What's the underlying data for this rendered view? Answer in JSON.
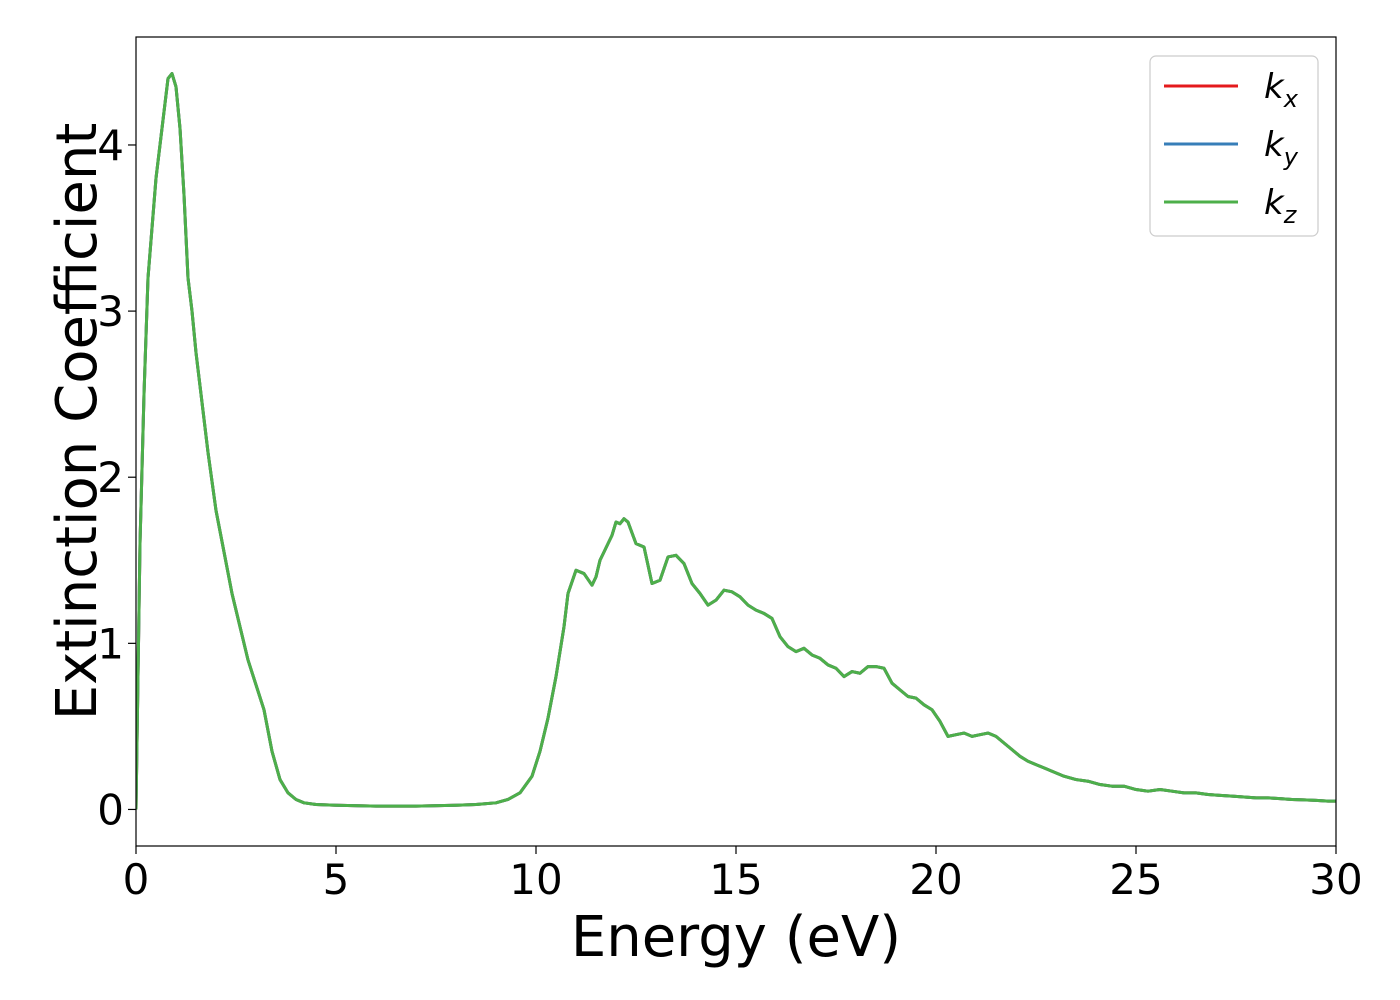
{
  "chart_data": {
    "type": "line",
    "xlabel": "Energy (eV)",
    "ylabel": "Extinction Coefficient",
    "xlim": [
      0,
      30
    ],
    "ylim": [
      -0.22,
      4.65
    ],
    "xticks": [
      0,
      5,
      10,
      15,
      20,
      25,
      30
    ],
    "yticks": [
      0,
      1,
      2,
      3,
      4
    ],
    "grid": false,
    "legend_position": "top-right",
    "series": [
      {
        "name": "k_x",
        "label_base": "k",
        "label_sub": "x",
        "color": "#e41a1c",
        "x": [
          0.0,
          0.1,
          0.2,
          0.3,
          0.4,
          0.5,
          0.6,
          0.7,
          0.8,
          0.9,
          1.0,
          1.1,
          1.2,
          1.25,
          1.3,
          1.4,
          1.5,
          1.6,
          1.8,
          2.0,
          2.2,
          2.4,
          2.6,
          2.8,
          3.0,
          3.2,
          3.4,
          3.6,
          3.8,
          4.0,
          4.2,
          4.5,
          5.0,
          6.0,
          7.0,
          8.0,
          8.5,
          9.0,
          9.3,
          9.6,
          9.9,
          10.1,
          10.3,
          10.5,
          10.7,
          10.8,
          11.0,
          11.2,
          11.4,
          11.5,
          11.6,
          11.7,
          11.8,
          11.9,
          12.0,
          12.1,
          12.2,
          12.3,
          12.5,
          12.7,
          12.9,
          13.1,
          13.3,
          13.5,
          13.7,
          13.9,
          14.1,
          14.3,
          14.5,
          14.7,
          14.9,
          15.1,
          15.3,
          15.5,
          15.7,
          15.9,
          16.1,
          16.3,
          16.5,
          16.7,
          16.9,
          17.1,
          17.3,
          17.5,
          17.7,
          17.9,
          18.1,
          18.3,
          18.5,
          18.7,
          18.9,
          19.1,
          19.3,
          19.5,
          19.7,
          19.9,
          20.1,
          20.3,
          20.5,
          20.7,
          20.9,
          21.1,
          21.3,
          21.5,
          21.7,
          21.9,
          22.1,
          22.3,
          22.5,
          22.7,
          22.9,
          23.2,
          23.5,
          23.8,
          24.1,
          24.4,
          24.7,
          25.0,
          25.3,
          25.6,
          25.9,
          26.2,
          26.5,
          26.8,
          27.1,
          27.4,
          27.7,
          28.0,
          28.3,
          28.6,
          28.9,
          29.2,
          29.5,
          29.8,
          30.0
        ],
        "y": [
          0.0,
          1.6,
          2.5,
          3.2,
          3.5,
          3.8,
          4.0,
          4.2,
          4.4,
          4.43,
          4.35,
          4.1,
          3.7,
          3.45,
          3.2,
          3.0,
          2.75,
          2.55,
          2.15,
          1.8,
          1.55,
          1.3,
          1.1,
          0.9,
          0.75,
          0.6,
          0.35,
          0.18,
          0.1,
          0.06,
          0.04,
          0.03,
          0.025,
          0.02,
          0.02,
          0.025,
          0.03,
          0.04,
          0.06,
          0.1,
          0.2,
          0.35,
          0.55,
          0.8,
          1.1,
          1.3,
          1.44,
          1.42,
          1.35,
          1.4,
          1.5,
          1.55,
          1.6,
          1.65,
          1.73,
          1.72,
          1.75,
          1.73,
          1.6,
          1.58,
          1.36,
          1.38,
          1.52,
          1.53,
          1.48,
          1.36,
          1.3,
          1.23,
          1.26,
          1.32,
          1.31,
          1.28,
          1.23,
          1.2,
          1.18,
          1.15,
          1.04,
          0.98,
          0.95,
          0.97,
          0.93,
          0.91,
          0.87,
          0.85,
          0.8,
          0.83,
          0.82,
          0.86,
          0.86,
          0.85,
          0.76,
          0.72,
          0.68,
          0.67,
          0.63,
          0.6,
          0.53,
          0.44,
          0.45,
          0.46,
          0.44,
          0.45,
          0.46,
          0.44,
          0.4,
          0.36,
          0.32,
          0.29,
          0.27,
          0.25,
          0.23,
          0.2,
          0.18,
          0.17,
          0.15,
          0.14,
          0.14,
          0.12,
          0.11,
          0.12,
          0.11,
          0.1,
          0.1,
          0.09,
          0.085,
          0.08,
          0.075,
          0.07,
          0.07,
          0.065,
          0.06,
          0.058,
          0.055,
          0.05,
          0.05
        ]
      },
      {
        "name": "k_y",
        "label_base": "k",
        "label_sub": "y",
        "color": "#377eb8",
        "x": [
          0.0,
          0.1,
          0.2,
          0.3,
          0.4,
          0.5,
          0.6,
          0.7,
          0.8,
          0.9,
          1.0,
          1.1,
          1.2,
          1.25,
          1.3,
          1.4,
          1.5,
          1.6,
          1.8,
          2.0,
          2.2,
          2.4,
          2.6,
          2.8,
          3.0,
          3.2,
          3.4,
          3.6,
          3.8,
          4.0,
          4.2,
          4.5,
          5.0,
          6.0,
          7.0,
          8.0,
          8.5,
          9.0,
          9.3,
          9.6,
          9.9,
          10.1,
          10.3,
          10.5,
          10.7,
          10.8,
          11.0,
          11.2,
          11.4,
          11.5,
          11.6,
          11.7,
          11.8,
          11.9,
          12.0,
          12.1,
          12.2,
          12.3,
          12.5,
          12.7,
          12.9,
          13.1,
          13.3,
          13.5,
          13.7,
          13.9,
          14.1,
          14.3,
          14.5,
          14.7,
          14.9,
          15.1,
          15.3,
          15.5,
          15.7,
          15.9,
          16.1,
          16.3,
          16.5,
          16.7,
          16.9,
          17.1,
          17.3,
          17.5,
          17.7,
          17.9,
          18.1,
          18.3,
          18.5,
          18.7,
          18.9,
          19.1,
          19.3,
          19.5,
          19.7,
          19.9,
          20.1,
          20.3,
          20.5,
          20.7,
          20.9,
          21.1,
          21.3,
          21.5,
          21.7,
          21.9,
          22.1,
          22.3,
          22.5,
          22.7,
          22.9,
          23.2,
          23.5,
          23.8,
          24.1,
          24.4,
          24.7,
          25.0,
          25.3,
          25.6,
          25.9,
          26.2,
          26.5,
          26.8,
          27.1,
          27.4,
          27.7,
          28.0,
          28.3,
          28.6,
          28.9,
          29.2,
          29.5,
          29.8,
          30.0
        ],
        "y": [
          0.0,
          1.6,
          2.5,
          3.2,
          3.5,
          3.8,
          4.0,
          4.2,
          4.4,
          4.43,
          4.35,
          4.1,
          3.7,
          3.45,
          3.2,
          3.0,
          2.75,
          2.55,
          2.15,
          1.8,
          1.55,
          1.3,
          1.1,
          0.9,
          0.75,
          0.6,
          0.35,
          0.18,
          0.1,
          0.06,
          0.04,
          0.03,
          0.025,
          0.02,
          0.02,
          0.025,
          0.03,
          0.04,
          0.06,
          0.1,
          0.2,
          0.35,
          0.55,
          0.8,
          1.1,
          1.3,
          1.44,
          1.42,
          1.35,
          1.4,
          1.5,
          1.55,
          1.6,
          1.65,
          1.73,
          1.72,
          1.75,
          1.73,
          1.6,
          1.58,
          1.36,
          1.38,
          1.52,
          1.53,
          1.48,
          1.36,
          1.3,
          1.23,
          1.26,
          1.32,
          1.31,
          1.28,
          1.23,
          1.2,
          1.18,
          1.15,
          1.04,
          0.98,
          0.95,
          0.97,
          0.93,
          0.91,
          0.87,
          0.85,
          0.8,
          0.83,
          0.82,
          0.86,
          0.86,
          0.85,
          0.76,
          0.72,
          0.68,
          0.67,
          0.63,
          0.6,
          0.53,
          0.44,
          0.45,
          0.46,
          0.44,
          0.45,
          0.46,
          0.44,
          0.4,
          0.36,
          0.32,
          0.29,
          0.27,
          0.25,
          0.23,
          0.2,
          0.18,
          0.17,
          0.15,
          0.14,
          0.14,
          0.12,
          0.11,
          0.12,
          0.11,
          0.1,
          0.1,
          0.09,
          0.085,
          0.08,
          0.075,
          0.07,
          0.07,
          0.065,
          0.06,
          0.058,
          0.055,
          0.05,
          0.05
        ]
      },
      {
        "name": "k_z",
        "label_base": "k",
        "label_sub": "z",
        "color": "#4daf4a",
        "x": [
          0.0,
          0.1,
          0.2,
          0.3,
          0.4,
          0.5,
          0.6,
          0.7,
          0.8,
          0.9,
          1.0,
          1.1,
          1.2,
          1.25,
          1.3,
          1.4,
          1.5,
          1.6,
          1.8,
          2.0,
          2.2,
          2.4,
          2.6,
          2.8,
          3.0,
          3.2,
          3.4,
          3.6,
          3.8,
          4.0,
          4.2,
          4.5,
          5.0,
          6.0,
          7.0,
          8.0,
          8.5,
          9.0,
          9.3,
          9.6,
          9.9,
          10.1,
          10.3,
          10.5,
          10.7,
          10.8,
          11.0,
          11.2,
          11.4,
          11.5,
          11.6,
          11.7,
          11.8,
          11.9,
          12.0,
          12.1,
          12.2,
          12.3,
          12.5,
          12.7,
          12.9,
          13.1,
          13.3,
          13.5,
          13.7,
          13.9,
          14.1,
          14.3,
          14.5,
          14.7,
          14.9,
          15.1,
          15.3,
          15.5,
          15.7,
          15.9,
          16.1,
          16.3,
          16.5,
          16.7,
          16.9,
          17.1,
          17.3,
          17.5,
          17.7,
          17.9,
          18.1,
          18.3,
          18.5,
          18.7,
          18.9,
          19.1,
          19.3,
          19.5,
          19.7,
          19.9,
          20.1,
          20.3,
          20.5,
          20.7,
          20.9,
          21.1,
          21.3,
          21.5,
          21.7,
          21.9,
          22.1,
          22.3,
          22.5,
          22.7,
          22.9,
          23.2,
          23.5,
          23.8,
          24.1,
          24.4,
          24.7,
          25.0,
          25.3,
          25.6,
          25.9,
          26.2,
          26.5,
          26.8,
          27.1,
          27.4,
          27.7,
          28.0,
          28.3,
          28.6,
          28.9,
          29.2,
          29.5,
          29.8,
          30.0
        ],
        "y": [
          0.0,
          1.6,
          2.5,
          3.2,
          3.5,
          3.8,
          4.0,
          4.2,
          4.4,
          4.43,
          4.35,
          4.1,
          3.7,
          3.45,
          3.2,
          3.0,
          2.75,
          2.55,
          2.15,
          1.8,
          1.55,
          1.3,
          1.1,
          0.9,
          0.75,
          0.6,
          0.35,
          0.18,
          0.1,
          0.06,
          0.04,
          0.03,
          0.025,
          0.02,
          0.02,
          0.025,
          0.03,
          0.04,
          0.06,
          0.1,
          0.2,
          0.35,
          0.55,
          0.8,
          1.1,
          1.3,
          1.44,
          1.42,
          1.35,
          1.4,
          1.5,
          1.55,
          1.6,
          1.65,
          1.73,
          1.72,
          1.75,
          1.73,
          1.6,
          1.58,
          1.36,
          1.38,
          1.52,
          1.53,
          1.48,
          1.36,
          1.3,
          1.23,
          1.26,
          1.32,
          1.31,
          1.28,
          1.23,
          1.2,
          1.18,
          1.15,
          1.04,
          0.98,
          0.95,
          0.97,
          0.93,
          0.91,
          0.87,
          0.85,
          0.8,
          0.83,
          0.82,
          0.86,
          0.86,
          0.85,
          0.76,
          0.72,
          0.68,
          0.67,
          0.63,
          0.6,
          0.53,
          0.44,
          0.45,
          0.46,
          0.44,
          0.45,
          0.46,
          0.44,
          0.4,
          0.36,
          0.32,
          0.29,
          0.27,
          0.25,
          0.23,
          0.2,
          0.18,
          0.17,
          0.15,
          0.14,
          0.14,
          0.12,
          0.11,
          0.12,
          0.11,
          0.1,
          0.1,
          0.09,
          0.085,
          0.08,
          0.075,
          0.07,
          0.07,
          0.065,
          0.06,
          0.058,
          0.055,
          0.05,
          0.05
        ]
      }
    ]
  }
}
